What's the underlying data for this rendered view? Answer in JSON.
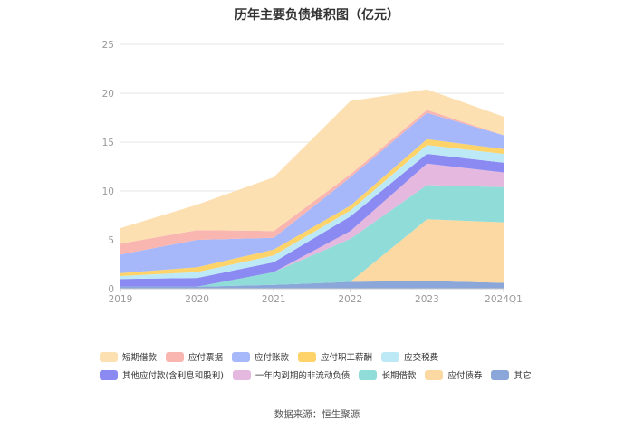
{
  "chart_data": {
    "type": "area",
    "stacked": true,
    "title": "历年主要负债堆积图（亿元）",
    "source": "数据来源：恒生聚源",
    "categories": [
      "2019",
      "2020",
      "2021",
      "2022",
      "2023",
      "2024Q1"
    ],
    "ylim": [
      0,
      25
    ],
    "yticks": [
      "0",
      "5",
      "10",
      "15",
      "20",
      "25"
    ],
    "series": [
      {
        "name": "其它",
        "color": "#8ba6d9",
        "values": [
          0.2,
          0.2,
          0.4,
          0.7,
          0.8,
          0.6
        ]
      },
      {
        "name": "应付债券",
        "color": "#fcd9a2",
        "values": [
          0,
          0,
          0,
          0,
          6.3,
          6.2
        ]
      },
      {
        "name": "长期借款",
        "color": "#8fdcd9",
        "values": [
          0,
          0,
          1.3,
          4.4,
          3.5,
          3.6
        ]
      },
      {
        "name": "一年内到期的非流动负债",
        "color": "#e4b8df",
        "values": [
          0,
          0,
          0,
          0.8,
          2.2,
          1.5
        ]
      },
      {
        "name": "其他应付款(含利息和股利)",
        "color": "#8a8af2",
        "values": [
          0.8,
          0.9,
          1.0,
          1.5,
          1.0,
          1.0
        ]
      },
      {
        "name": "应交税费",
        "color": "#bde9f7",
        "values": [
          0.3,
          0.6,
          0.7,
          0.6,
          0.9,
          0.9
        ]
      },
      {
        "name": "应付职工薪酬",
        "color": "#fdd36a",
        "values": [
          0.3,
          0.5,
          0.6,
          0.5,
          0.6,
          0.5
        ]
      },
      {
        "name": "应付账款",
        "color": "#a6b8f9",
        "values": [
          1.9,
          2.8,
          1.2,
          2.9,
          2.7,
          1.4
        ]
      },
      {
        "name": "应付票据",
        "color": "#f9b6b1",
        "values": [
          1.1,
          1.0,
          0.7,
          0.3,
          0.3,
          0
        ]
      },
      {
        "name": "短期借款",
        "color": "#fde0b1",
        "values": [
          1.6,
          2.6,
          5.5,
          7.5,
          2.1,
          1.9
        ]
      }
    ],
    "legend_order": [
      "短期借款",
      "应付票据",
      "应付账款",
      "应付职工薪酬",
      "应交税费",
      "其他应付款(含利息和股利)",
      "一年内到期的非流动负债",
      "长期借款",
      "应付债券",
      "其它"
    ]
  }
}
